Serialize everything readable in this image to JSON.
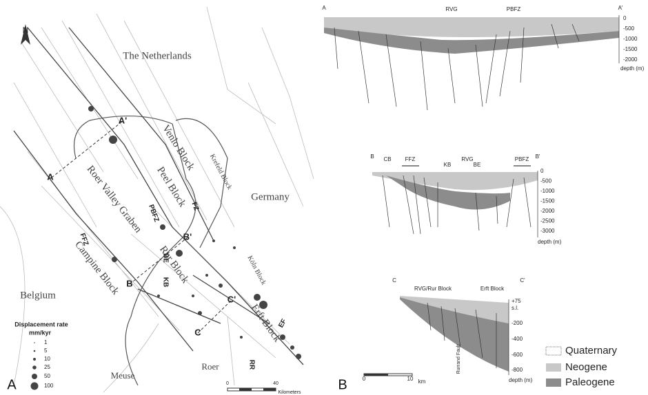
{
  "panel_labels": {
    "a": "A",
    "b": "B"
  },
  "map": {
    "north": "N",
    "countries": [
      "The Netherlands",
      "Germany",
      "Belgium"
    ],
    "blocks": [
      "Venlo Block",
      "Peel Block",
      "Roer Valley Graben",
      "Campine Block",
      "Rur Block",
      "Erft Block",
      "Krefeld Block",
      "Köln Block"
    ],
    "faults": [
      "FFZ",
      "PBFZ",
      "FZ",
      "BE",
      "KB",
      "EF",
      "RR"
    ],
    "rivers": [
      "Roer",
      "Meuse"
    ],
    "section_ends": [
      "A",
      "A'",
      "B",
      "B'",
      "C",
      "C'"
    ],
    "legend": {
      "title": "Displacement rate",
      "unit": "mm/kyr",
      "items": [
        "1",
        "5",
        "10",
        "25",
        "50",
        "100"
      ]
    },
    "scale": [
      "0",
      "40",
      "Kilometers"
    ]
  },
  "sections": [
    {
      "ends": [
        "A",
        "A'"
      ],
      "labels": [
        "RVG",
        "PBFZ"
      ],
      "ticks": [
        "0",
        "-500",
        "-1000",
        "-1500",
        "-2000"
      ],
      "axis": "depth (m)"
    },
    {
      "ends": [
        "B",
        "B'"
      ],
      "labels": [
        "CB",
        "FFZ",
        "RVG",
        "KB",
        "BE",
        "PBFZ"
      ],
      "ticks": [
        "0",
        "-500",
        "-1000",
        "-1500",
        "-2000",
        "-2500",
        "-3000"
      ],
      "axis": "depth (m)"
    },
    {
      "ends": [
        "C",
        "C'"
      ],
      "labels": [
        "RVG/Rur Block",
        "Erft Block",
        "Rurrand Fault"
      ],
      "ticks": [
        "+75",
        "s.l.",
        "-200",
        "-400",
        "-600",
        "-800"
      ],
      "axis": "depth (m)",
      "scale": [
        "0",
        "10",
        "km"
      ]
    }
  ],
  "legend": [
    "Quaternary",
    "Neogene",
    "Paleogene"
  ]
}
